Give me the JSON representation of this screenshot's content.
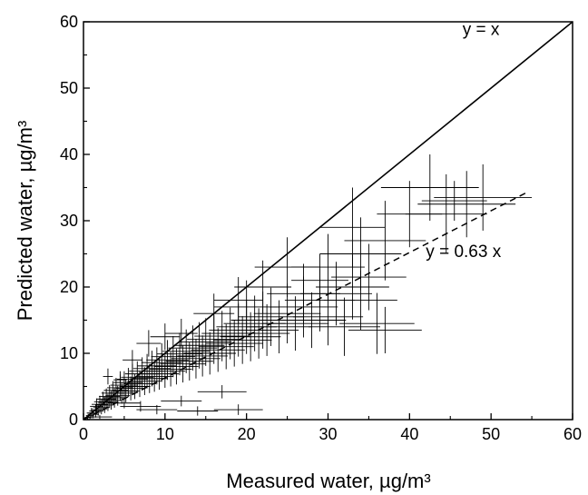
{
  "chart_data": {
    "type": "scatter",
    "xlabel": "Measured water, µg/m³",
    "ylabel": "Predicted water, µg/m³",
    "xlim": [
      0,
      60
    ],
    "ylim": [
      0,
      60
    ],
    "xticks": [
      0,
      10,
      20,
      30,
      40,
      50,
      60
    ],
    "yticks": [
      0,
      10,
      20,
      30,
      40,
      50,
      60
    ],
    "grid": false,
    "lines": [
      {
        "name": "y = x",
        "slope": 1,
        "x_range": [
          0,
          60
        ],
        "style": "solid",
        "label_x": 46.5,
        "label_y": 58
      },
      {
        "name": "y = 0.63 x",
        "slope": 0.63,
        "x_range": [
          0,
          54.5
        ],
        "style": "dashed",
        "label_x": 42,
        "label_y": 24.5
      }
    ],
    "points": [
      {
        "x": 0.5,
        "y": 0.3,
        "xe": 0.4,
        "ye": 0.3
      },
      {
        "x": 0.8,
        "y": 0.6,
        "xe": 0.5,
        "ye": 0.5
      },
      {
        "x": 1.0,
        "y": 1.0,
        "xe": 0.6,
        "ye": 0.8
      },
      {
        "x": 1.2,
        "y": 0.8,
        "xe": 0.7,
        "ye": 0.6
      },
      {
        "x": 1.5,
        "y": 1.3,
        "xe": 0.8,
        "ye": 1.0
      },
      {
        "x": 1.6,
        "y": 2.0,
        "xe": 0.8,
        "ye": 1.2
      },
      {
        "x": 1.8,
        "y": 1.5,
        "xe": 0.9,
        "ye": 0.9
      },
      {
        "x": 2.0,
        "y": 2.3,
        "xe": 1.0,
        "ye": 1.3
      },
      {
        "x": 2.2,
        "y": 1.8,
        "xe": 1.0,
        "ye": 1.0
      },
      {
        "x": 2.4,
        "y": 2.7,
        "xe": 1.1,
        "ye": 1.5
      },
      {
        "x": 2.6,
        "y": 2.2,
        "xe": 1.1,
        "ye": 1.2
      },
      {
        "x": 2.8,
        "y": 3.1,
        "xe": 1.2,
        "ye": 1.6
      },
      {
        "x": 3.0,
        "y": 2.6,
        "xe": 1.2,
        "ye": 1.3
      },
      {
        "x": 3.2,
        "y": 3.5,
        "xe": 1.3,
        "ye": 1.7
      },
      {
        "x": 3.4,
        "y": 2.9,
        "xe": 1.3,
        "ye": 1.4
      },
      {
        "x": 3.6,
        "y": 4.0,
        "xe": 1.4,
        "ye": 1.8
      },
      {
        "x": 3.8,
        "y": 3.3,
        "xe": 1.4,
        "ye": 1.5
      },
      {
        "x": 4.0,
        "y": 4.4,
        "xe": 1.5,
        "ye": 1.9
      },
      {
        "x": 4.2,
        "y": 3.6,
        "xe": 1.5,
        "ye": 1.5
      },
      {
        "x": 4.5,
        "y": 4.8,
        "xe": 1.6,
        "ye": 2.0
      },
      {
        "x": 4.7,
        "y": 4.0,
        "xe": 1.6,
        "ye": 1.6
      },
      {
        "x": 5.0,
        "y": 5.2,
        "xe": 1.7,
        "ye": 2.1
      },
      {
        "x": 5.2,
        "y": 4.3,
        "xe": 1.7,
        "ye": 1.7
      },
      {
        "x": 5.5,
        "y": 5.6,
        "xe": 1.8,
        "ye": 2.2
      },
      {
        "x": 5.8,
        "y": 4.7,
        "xe": 1.8,
        "ye": 1.8
      },
      {
        "x": 6.0,
        "y": 6.1,
        "xe": 1.9,
        "ye": 2.3
      },
      {
        "x": 6.3,
        "y": 5.0,
        "xe": 1.9,
        "ye": 1.9
      },
      {
        "x": 6.6,
        "y": 6.4,
        "xe": 2.0,
        "ye": 2.4
      },
      {
        "x": 6.9,
        "y": 5.4,
        "xe": 2.0,
        "ye": 2.0
      },
      {
        "x": 7.2,
        "y": 6.9,
        "xe": 2.1,
        "ye": 2.5
      },
      {
        "x": 7.5,
        "y": 5.8,
        "xe": 2.1,
        "ye": 2.1
      },
      {
        "x": 7.8,
        "y": 7.3,
        "xe": 2.2,
        "ye": 2.6
      },
      {
        "x": 8.1,
        "y": 6.2,
        "xe": 2.2,
        "ye": 2.2
      },
      {
        "x": 8.4,
        "y": 7.7,
        "xe": 2.3,
        "ye": 2.7
      },
      {
        "x": 8.7,
        "y": 6.5,
        "xe": 2.3,
        "ye": 2.3
      },
      {
        "x": 9.0,
        "y": 8.1,
        "xe": 2.4,
        "ye": 2.8
      },
      {
        "x": 9.3,
        "y": 6.9,
        "xe": 2.4,
        "ye": 2.4
      },
      {
        "x": 9.6,
        "y": 8.6,
        "xe": 2.5,
        "ye": 2.9
      },
      {
        "x": 10.0,
        "y": 7.3,
        "xe": 2.5,
        "ye": 2.5
      },
      {
        "x": 10.3,
        "y": 9.0,
        "xe": 2.6,
        "ye": 3.0
      },
      {
        "x": 10.7,
        "y": 7.6,
        "xe": 2.6,
        "ye": 2.6
      },
      {
        "x": 11.0,
        "y": 9.5,
        "xe": 2.7,
        "ye": 3.1
      },
      {
        "x": 11.4,
        "y": 8.0,
        "xe": 2.7,
        "ye": 2.7
      },
      {
        "x": 11.8,
        "y": 9.9,
        "xe": 2.8,
        "ye": 3.2
      },
      {
        "x": 12.2,
        "y": 8.4,
        "xe": 2.8,
        "ye": 2.8
      },
      {
        "x": 12.6,
        "y": 10.3,
        "xe": 2.9,
        "ye": 3.3
      },
      {
        "x": 13.0,
        "y": 8.8,
        "xe": 2.9,
        "ye": 2.9
      },
      {
        "x": 13.4,
        "y": 10.8,
        "xe": 3.0,
        "ye": 3.4
      },
      {
        "x": 13.8,
        "y": 9.2,
        "xe": 3.0,
        "ye": 3.0
      },
      {
        "x": 14.2,
        "y": 11.2,
        "xe": 3.1,
        "ye": 3.5
      },
      {
        "x": 14.6,
        "y": 9.6,
        "xe": 3.1,
        "ye": 3.1
      },
      {
        "x": 15.0,
        "y": 11.7,
        "xe": 3.2,
        "ye": 3.6
      },
      {
        "x": 15.5,
        "y": 10.0,
        "xe": 3.2,
        "ye": 3.2
      },
      {
        "x": 16.0,
        "y": 12.1,
        "xe": 3.3,
        "ye": 3.7
      },
      {
        "x": 16.5,
        "y": 10.5,
        "xe": 3.3,
        "ye": 3.3
      },
      {
        "x": 17.0,
        "y": 12.6,
        "xe": 3.4,
        "ye": 3.8
      },
      {
        "x": 17.5,
        "y": 11.0,
        "xe": 3.4,
        "ye": 3.4
      },
      {
        "x": 18.0,
        "y": 13.0,
        "xe": 3.5,
        "ye": 3.9
      },
      {
        "x": 18.5,
        "y": 11.5,
        "xe": 3.5,
        "ye": 3.5
      },
      {
        "x": 19.0,
        "y": 13.5,
        "xe": 3.6,
        "ye": 4.0
      },
      {
        "x": 19.5,
        "y": 12.0,
        "xe": 3.6,
        "ye": 3.6
      },
      {
        "x": 20.0,
        "y": 14.0,
        "xe": 3.7,
        "ye": 4.1
      },
      {
        "x": 20.5,
        "y": 12.5,
        "xe": 3.7,
        "ye": 3.7
      },
      {
        "x": 21.0,
        "y": 14.5,
        "xe": 3.8,
        "ye": 4.2
      },
      {
        "x": 21.5,
        "y": 13.0,
        "xe": 3.8,
        "ye": 3.8
      },
      {
        "x": 22.0,
        "y": 15.0,
        "xe": 3.9,
        "ye": 4.3
      },
      {
        "x": 22.5,
        "y": 13.5,
        "xe": 3.9,
        "ye": 3.9
      },
      {
        "x": 23.0,
        "y": 15.5,
        "xe": 4.0,
        "ye": 4.4
      },
      {
        "x": 24.0,
        "y": 14.0,
        "xe": 4.0,
        "ye": 4.0
      },
      {
        "x": 25.0,
        "y": 16.0,
        "xe": 4.1,
        "ye": 4.5
      },
      {
        "x": 26.0,
        "y": 14.5,
        "xe": 4.1,
        "ye": 4.1
      },
      {
        "x": 27.0,
        "y": 17.0,
        "xe": 4.2,
        "ye": 4.6
      },
      {
        "x": 28.0,
        "y": 15.0,
        "xe": 4.2,
        "ye": 4.2
      },
      {
        "x": 29.0,
        "y": 18.0,
        "xe": 4.3,
        "ye": 4.7
      },
      {
        "x": 30.0,
        "y": 15.5,
        "xe": 4.3,
        "ye": 4.3
      },
      {
        "x": 31.0,
        "y": 19.0,
        "xe": 4.4,
        "ye": 4.8
      },
      {
        "x": 32.0,
        "y": 14.0,
        "xe": 4.4,
        "ye": 4.4
      },
      {
        "x": 33.0,
        "y": 20.0,
        "xe": 4.5,
        "ye": 4.9
      },
      {
        "x": 34.0,
        "y": 18.0,
        "xe": 4.5,
        "ye": 4.5
      },
      {
        "x": 35.0,
        "y": 21.5,
        "xe": 4.6,
        "ye": 5.0
      },
      {
        "x": 36.0,
        "y": 14.5,
        "xe": 4.6,
        "ye": 4.6
      },
      {
        "x": 37.0,
        "y": 13.5,
        "xe": 4.5,
        "ye": 3.5
      },
      {
        "x": 8.0,
        "y": 11.5,
        "xe": 1.5,
        "ye": 2.0
      },
      {
        "x": 10.0,
        "y": 12.5,
        "xe": 1.8,
        "ye": 2.0
      },
      {
        "x": 6.0,
        "y": 9.0,
        "xe": 1.2,
        "ye": 1.5
      },
      {
        "x": 12.0,
        "y": 13.0,
        "xe": 2.0,
        "ye": 2.2
      },
      {
        "x": 16.0,
        "y": 16.0,
        "xe": 2.5,
        "ye": 3.0
      },
      {
        "x": 19.0,
        "y": 18.0,
        "xe": 3.0,
        "ye": 3.5
      },
      {
        "x": 22.0,
        "y": 20.0,
        "xe": 3.5,
        "ye": 4.0
      },
      {
        "x": 25.0,
        "y": 23.0,
        "xe": 4.0,
        "ye": 4.5
      },
      {
        "x": 30.0,
        "y": 23.0,
        "xe": 4.5,
        "ye": 5.0
      },
      {
        "x": 34.0,
        "y": 25.0,
        "xe": 5.0,
        "ye": 5.5
      },
      {
        "x": 33.0,
        "y": 29.0,
        "xe": 4.0,
        "ye": 6.0
      },
      {
        "x": 37.0,
        "y": 27.0,
        "xe": 5.0,
        "ye": 6.0
      },
      {
        "x": 40.0,
        "y": 31.0,
        "xe": 4.0,
        "ye": 5.0
      },
      {
        "x": 42.5,
        "y": 35.0,
        "xe": 6.0,
        "ye": 5.0
      },
      {
        "x": 44.5,
        "y": 31.0,
        "xe": 5.0,
        "ye": 6.0
      },
      {
        "x": 47.0,
        "y": 32.5,
        "xe": 6.0,
        "ye": 5.0
      },
      {
        "x": 49.0,
        "y": 33.5,
        "xe": 6.0,
        "ye": 5.0
      },
      {
        "x": 45.5,
        "y": 33.0,
        "xe": 4.0,
        "ye": 3.0
      },
      {
        "x": 20.0,
        "y": 17.0,
        "xe": 4.0,
        "ye": 4.0
      },
      {
        "x": 27.0,
        "y": 19.0,
        "xe": 4.5,
        "ye": 4.5
      },
      {
        "x": 29.0,
        "y": 21.0,
        "xe": 3.5,
        "ye": 4.0
      },
      {
        "x": 3.0,
        "y": 6.5,
        "xe": 0.6,
        "ye": 1.2
      },
      {
        "x": 4.5,
        "y": 6.0,
        "xe": 0.8,
        "ye": 1.3
      },
      {
        "x": 5.0,
        "y": 2.5,
        "xe": 2.0,
        "ye": 0.8
      },
      {
        "x": 7.0,
        "y": 2.0,
        "xe": 2.5,
        "ye": 0.8
      },
      {
        "x": 9.0,
        "y": 1.5,
        "xe": 2.5,
        "ye": 0.7
      },
      {
        "x": 12.0,
        "y": 2.8,
        "xe": 2.5,
        "ye": 0.8
      },
      {
        "x": 14.0,
        "y": 1.3,
        "xe": 2.5,
        "ye": 0.7
      },
      {
        "x": 17.0,
        "y": 4.2,
        "xe": 3.0,
        "ye": 1.0
      },
      {
        "x": 19.0,
        "y": 1.5,
        "xe": 3.0,
        "ye": 0.8
      },
      {
        "x": 2.0,
        "y": 0.4,
        "xe": 1.5,
        "ye": 0.3
      }
    ]
  }
}
